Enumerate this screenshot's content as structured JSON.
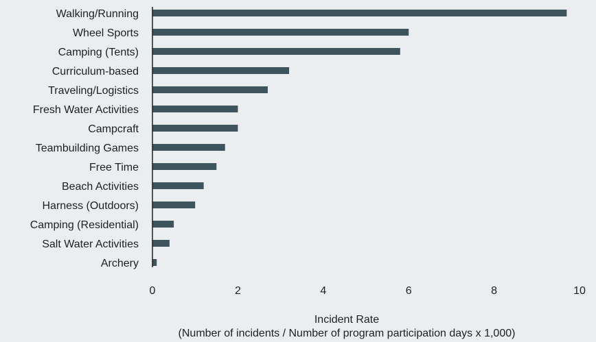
{
  "chart_data": {
    "type": "bar",
    "orientation": "horizontal",
    "categories": [
      "Walking/Running",
      "Wheel Sports",
      "Camping (Tents)",
      "Curriculum-based",
      "Traveling/Logistics",
      "Fresh Water Activities",
      "Campcraft",
      "Teambuilding Games",
      "Free Time",
      "Beach Activities",
      "Harness (Outdoors)",
      "Camping (Residential)",
      "Salt Water Activities",
      "Archery"
    ],
    "values": [
      9.7,
      6.0,
      5.8,
      3.2,
      2.7,
      2.0,
      2.0,
      1.7,
      1.5,
      1.2,
      1.0,
      0.5,
      0.4,
      0.1
    ],
    "title": "",
    "xlabel_line1": "Incident Rate",
    "xlabel_line2": "(Number of incidents / Number of program participation days x 1,000)",
    "ylabel": "",
    "xlim": [
      0,
      10
    ],
    "xticks": [
      "0",
      "2",
      "4",
      "6",
      "8",
      "10"
    ],
    "grid": false,
    "bar_color": "#3e545c",
    "background": "#eaeef1"
  }
}
